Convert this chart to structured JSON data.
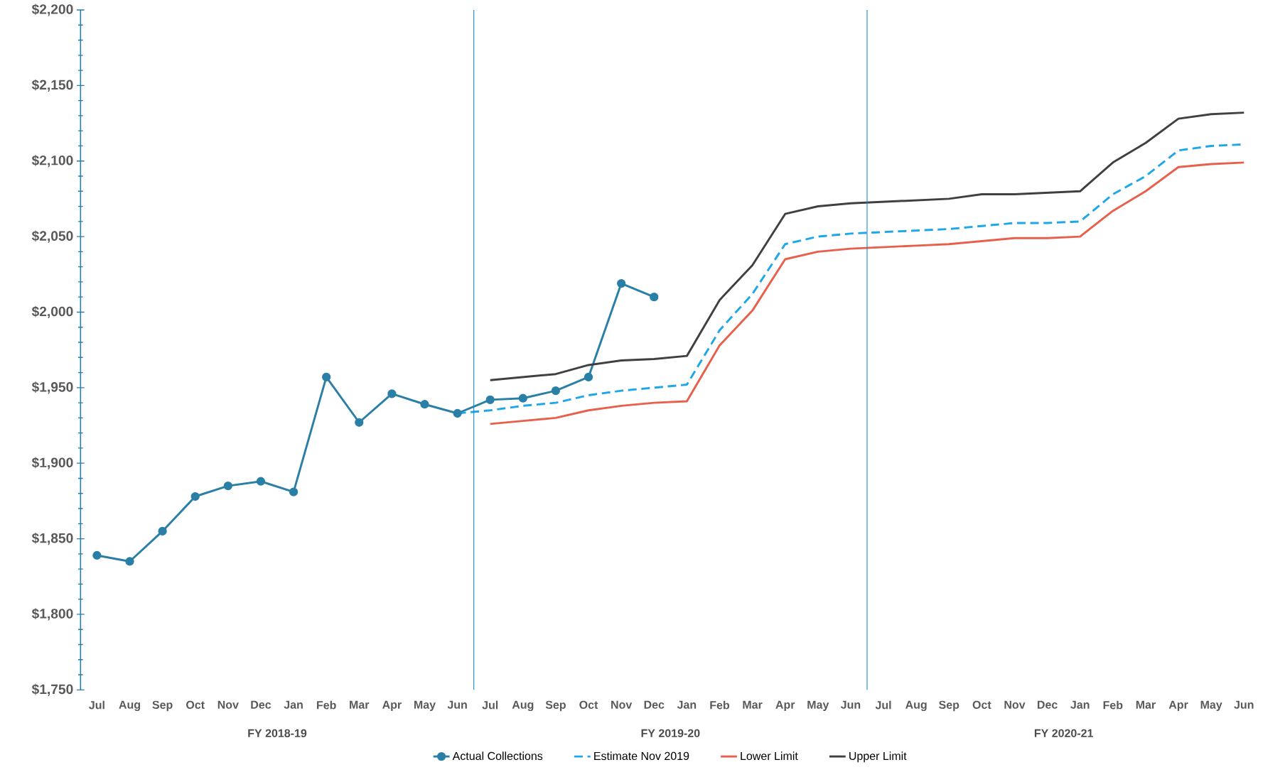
{
  "chart_data": {
    "type": "line",
    "categories": [
      "Jul",
      "Aug",
      "Sep",
      "Oct",
      "Nov",
      "Dec",
      "Jan",
      "Feb",
      "Mar",
      "Apr",
      "May",
      "Jun",
      "Jul",
      "Aug",
      "Sep",
      "Oct",
      "Nov",
      "Dec",
      "Jan",
      "Feb",
      "Mar",
      "Apr",
      "May",
      "Jun",
      "Jul",
      "Aug",
      "Sep",
      "Oct",
      "Nov",
      "Dec",
      "Jan",
      "Feb",
      "Mar",
      "Apr",
      "May",
      "Jun"
    ],
    "series": [
      {
        "name": "Actual Collections",
        "color": "#2a7fa6",
        "marker": "circle",
        "line_style": "solid",
        "values": [
          1839,
          1835,
          1855,
          1878,
          1885,
          1888,
          1881,
          1957,
          1927,
          1946,
          1939,
          1933,
          1942,
          1943,
          1948,
          1957,
          2019,
          2010,
          null,
          null,
          null,
          null,
          null,
          null,
          null,
          null,
          null,
          null,
          null,
          null,
          null,
          null,
          null,
          null,
          null,
          null
        ]
      },
      {
        "name": "Estimate Nov 2019",
        "color": "#1ea7e8",
        "marker": "none",
        "line_style": "dashed",
        "values": [
          null,
          null,
          null,
          null,
          null,
          null,
          null,
          null,
          null,
          null,
          null,
          1933,
          1935,
          1938,
          1940,
          1945,
          1948,
          1950,
          1952,
          1988,
          2012,
          2045,
          2050,
          2052,
          2053,
          2054,
          2055,
          2057,
          2059,
          2059,
          2060,
          2078,
          2090,
          2107,
          2110,
          2111
        ]
      },
      {
        "name": "Lower Limit",
        "color": "#e8604c",
        "marker": "none",
        "line_style": "solid",
        "values": [
          null,
          null,
          null,
          null,
          null,
          null,
          null,
          null,
          null,
          null,
          null,
          null,
          1926,
          1928,
          1930,
          1935,
          1938,
          1940,
          1941,
          1978,
          2001,
          2035,
          2040,
          2042,
          2043,
          2044,
          2045,
          2047,
          2049,
          2049,
          2050,
          2067,
          2080,
          2096,
          2098,
          2099
        ]
      },
      {
        "name": "Upper Limit",
        "color": "#404040",
        "marker": "none",
        "line_style": "solid",
        "values": [
          null,
          null,
          null,
          null,
          null,
          null,
          null,
          null,
          null,
          null,
          null,
          null,
          1955,
          1957,
          1959,
          1965,
          1968,
          1969,
          1971,
          2008,
          2031,
          2065,
          2070,
          2072,
          2073,
          2074,
          2075,
          2078,
          2078,
          2079,
          2080,
          2099,
          2112,
          2128,
          2131,
          2132
        ]
      }
    ],
    "ylim": [
      1750,
      2200
    ],
    "yticks": [
      {
        "value": 1750,
        "label": "$1,750"
      },
      {
        "value": 1800,
        "label": "$1,800"
      },
      {
        "value": 1850,
        "label": "$1,850"
      },
      {
        "value": 1900,
        "label": "$1,900"
      },
      {
        "value": 1950,
        "label": "$1,950"
      },
      {
        "value": 2000,
        "label": "$2,000"
      },
      {
        "value": 2050,
        "label": "$2,050"
      },
      {
        "value": 2100,
        "label": "$2,100"
      },
      {
        "value": 2150,
        "label": "$2,150"
      },
      {
        "value": 2200,
        "label": "$2,200"
      }
    ],
    "annotations": [
      "FY 2018-19",
      "FY 2019-20",
      "FY 2020-21"
    ],
    "grid": false,
    "legend": "bottom"
  }
}
